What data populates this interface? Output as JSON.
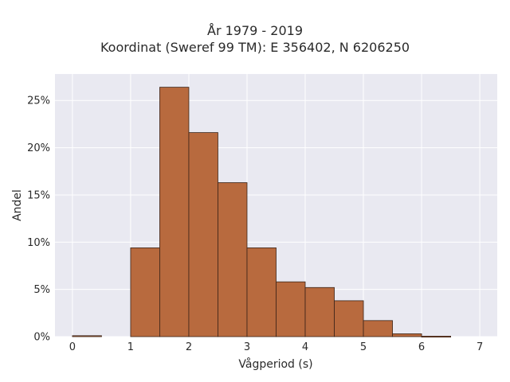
{
  "chart_data": {
    "type": "bar",
    "title_lines": [
      "År 1979 - 2019",
      "Koordinat (Sweref 99 TM): E 356402, N 6206250"
    ],
    "xlabel": "Vågperiod (s)",
    "ylabel": "Andel",
    "xlim": [
      -0.3,
      7.3
    ],
    "ylim": [
      0,
      27.8
    ],
    "x_ticks": [
      0,
      1,
      2,
      3,
      4,
      5,
      6,
      7
    ],
    "y_ticks": [
      0,
      5,
      10,
      15,
      20,
      25
    ],
    "y_tick_labels": [
      "0%",
      "5%",
      "10%",
      "15%",
      "20%",
      "25%"
    ],
    "bin_width": 0.5,
    "bins": [
      {
        "x0": 0.0,
        "x1": 0.5,
        "value": 0.1
      },
      {
        "x0": 0.5,
        "x1": 1.0,
        "value": 0.0
      },
      {
        "x0": 1.0,
        "x1": 1.5,
        "value": 9.4
      },
      {
        "x0": 1.5,
        "x1": 2.0,
        "value": 26.4
      },
      {
        "x0": 2.0,
        "x1": 2.5,
        "value": 21.6
      },
      {
        "x0": 2.5,
        "x1": 3.0,
        "value": 16.3
      },
      {
        "x0": 3.0,
        "x1": 3.5,
        "value": 9.4
      },
      {
        "x0": 3.5,
        "x1": 4.0,
        "value": 5.8
      },
      {
        "x0": 4.0,
        "x1": 4.5,
        "value": 5.2
      },
      {
        "x0": 4.5,
        "x1": 5.0,
        "value": 3.8
      },
      {
        "x0": 5.0,
        "x1": 5.5,
        "value": 1.7
      },
      {
        "x0": 5.5,
        "x1": 6.0,
        "value": 0.3
      },
      {
        "x0": 6.0,
        "x1": 6.5,
        "value": 0.05
      }
    ],
    "grid": true,
    "colors": {
      "bar_fill": "#b86a3e",
      "bar_edge": "#3b2418",
      "plot_bg": "#e9e9f1",
      "grid": "#ffffff"
    }
  }
}
